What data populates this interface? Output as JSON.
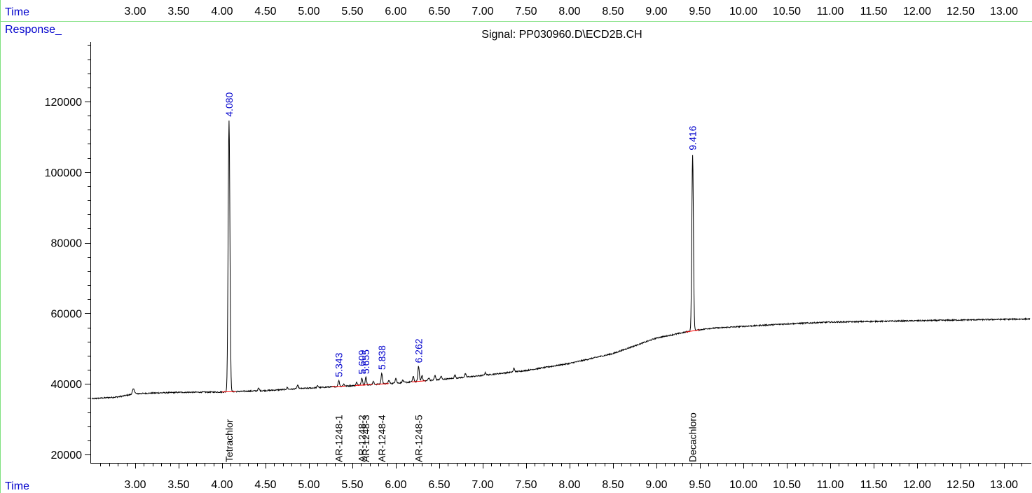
{
  "header": {
    "time_label": "Time",
    "response_label": "Response_",
    "signal_title": "Signal: PP030960.D\\ECD2B.CH"
  },
  "footer": {
    "time_label": "Time"
  },
  "colors": {
    "trace": "#000000",
    "peak_label": "#0000cc",
    "baseline_mark": "#ff0000",
    "axis": "#000000",
    "frame": "#7ee07e",
    "header_text": "#0000cc"
  },
  "chart_data": {
    "type": "line",
    "title": "Signal: PP030960.D\\ECD2B.CH",
    "xlabel": "Time",
    "ylabel": "Response_",
    "xlim": [
      2.5,
      13.3
    ],
    "ylim": [
      16000,
      136000
    ],
    "x_ticks": [
      "3.00",
      "3.50",
      "4.00",
      "4.50",
      "5.00",
      "5.50",
      "6.00",
      "6.50",
      "7.00",
      "7.50",
      "8.00",
      "8.50",
      "9.00",
      "9.50",
      "10.00",
      "10.50",
      "11.00",
      "11.50",
      "12.00",
      "12.50",
      "13.00"
    ],
    "y_ticks": [
      "20000",
      "40000",
      "60000",
      "80000",
      "100000",
      "120000"
    ],
    "baseline": {
      "x": [
        2.5,
        2.8,
        3.0,
        3.2,
        3.5,
        4.0,
        4.5,
        5.0,
        5.5,
        6.0,
        6.5,
        7.0,
        7.5,
        8.0,
        8.5,
        9.0,
        9.4,
        9.6,
        10.0,
        10.5,
        11.0,
        11.5,
        12.0,
        12.5,
        13.0,
        13.3
      ],
      "y": [
        35800,
        36300,
        37200,
        37400,
        37600,
        37700,
        38100,
        38800,
        39500,
        40200,
        41200,
        42400,
        43800,
        45800,
        48600,
        53000,
        55000,
        55700,
        56300,
        57000,
        57500,
        57700,
        57900,
        58100,
        58300,
        58400
      ]
    },
    "peaks": [
      {
        "rt": 2.98,
        "height": 1400,
        "width": 0.012
      },
      {
        "rt": 4.08,
        "height": 77000,
        "width": 0.01
      },
      {
        "rt": 4.42,
        "height": 700,
        "width": 0.008
      },
      {
        "rt": 4.75,
        "height": 500,
        "width": 0.008
      },
      {
        "rt": 4.87,
        "height": 900,
        "width": 0.01
      },
      {
        "rt": 5.1,
        "height": 500,
        "width": 0.008
      },
      {
        "rt": 5.343,
        "height": 1700,
        "width": 0.008
      },
      {
        "rt": 5.4,
        "height": 600,
        "width": 0.008
      },
      {
        "rt": 5.55,
        "height": 900,
        "width": 0.008
      },
      {
        "rt": 5.609,
        "height": 2100,
        "width": 0.008
      },
      {
        "rt": 5.655,
        "height": 2200,
        "width": 0.008
      },
      {
        "rt": 5.74,
        "height": 800,
        "width": 0.008
      },
      {
        "rt": 5.838,
        "height": 3000,
        "width": 0.008
      },
      {
        "rt": 5.92,
        "height": 900,
        "width": 0.008
      },
      {
        "rt": 6.0,
        "height": 1500,
        "width": 0.008
      },
      {
        "rt": 6.08,
        "height": 700,
        "width": 0.008
      },
      {
        "rt": 6.2,
        "height": 1500,
        "width": 0.008
      },
      {
        "rt": 6.262,
        "height": 4300,
        "width": 0.008
      },
      {
        "rt": 6.3,
        "height": 1600,
        "width": 0.008
      },
      {
        "rt": 6.38,
        "height": 800,
        "width": 0.008
      },
      {
        "rt": 6.45,
        "height": 1300,
        "width": 0.008
      },
      {
        "rt": 6.52,
        "height": 900,
        "width": 0.008
      },
      {
        "rt": 6.68,
        "height": 800,
        "width": 0.008
      },
      {
        "rt": 6.8,
        "height": 900,
        "width": 0.008
      },
      {
        "rt": 7.03,
        "height": 700,
        "width": 0.008
      },
      {
        "rt": 7.36,
        "height": 1000,
        "width": 0.008
      },
      {
        "rt": 9.416,
        "height": 50000,
        "width": 0.009
      }
    ],
    "retention_labels": [
      {
        "rt": 4.08,
        "label": "4.080",
        "y": 114500
      },
      {
        "rt": 5.343,
        "label": "5.343",
        "y": 40700
      },
      {
        "rt": 5.609,
        "label": "5.609",
        "y": 41500
      },
      {
        "rt": 5.655,
        "label": "5.655",
        "y": 41600
      },
      {
        "rt": 5.838,
        "label": "5.838",
        "y": 42800
      },
      {
        "rt": 6.262,
        "label": "6.262",
        "y": 44700
      },
      {
        "rt": 9.416,
        "label": "9.416",
        "y": 105000
      }
    ],
    "compounds": [
      {
        "rt": 4.08,
        "name": "Tetrachlor"
      },
      {
        "rt": 5.343,
        "name": "AR-1248-1"
      },
      {
        "rt": 5.609,
        "name": "AR-1248-2"
      },
      {
        "rt": 5.655,
        "name": "AR-1248-3"
      },
      {
        "rt": 5.838,
        "name": "AR-1248-4"
      },
      {
        "rt": 6.262,
        "name": "AR-1248-5"
      },
      {
        "rt": 9.416,
        "name": "Decachloro"
      }
    ]
  }
}
